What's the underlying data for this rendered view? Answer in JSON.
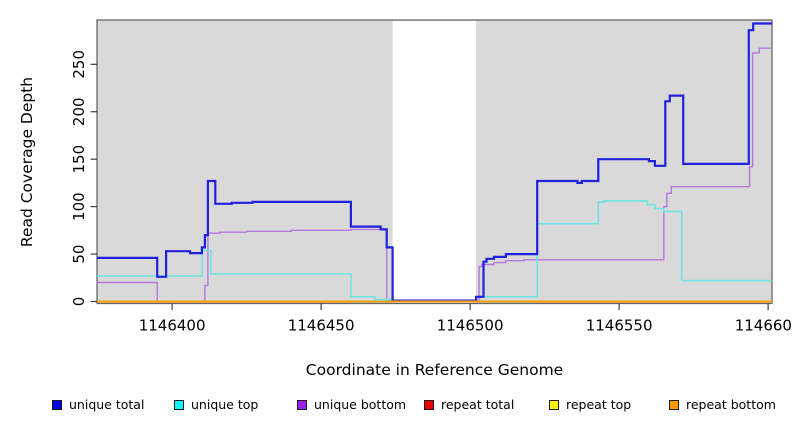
{
  "figure": {
    "xlabel": "Coordinate in Reference Genome",
    "ylabel": "Read Coverage Depth"
  },
  "chart_data": {
    "type": "line",
    "subtype": "step-after",
    "title": "",
    "xlabel": "Coordinate in Reference Genome",
    "ylabel": "Read Coverage Depth",
    "xlim": [
      1146374.8,
      1146601.3
    ],
    "ylim": [
      -2.1,
      296.7
    ],
    "x_ticks": [
      1146400,
      1146450,
      1146500,
      1146550,
      1146600
    ],
    "y_ticks": [
      0,
      50,
      100,
      150,
      200,
      250
    ],
    "grid": false,
    "legend_position": "bottom",
    "plot_background": "#d9d9d9",
    "outer_background": "#ffffff",
    "masked_region": {
      "from": 1146474,
      "to": 1146502,
      "color": "#ffffff"
    },
    "draw_order": [
      3,
      4,
      2,
      1,
      0,
      5
    ],
    "series": [
      {
        "name": "unique total",
        "color": "#2121dd",
        "legend_color": "#0000f0",
        "width": 2.2,
        "steps": [
          [
            1146374.8,
            46
          ],
          [
            1146395,
            26
          ],
          [
            1146398,
            53
          ],
          [
            1146406,
            51
          ],
          [
            1146410,
            57
          ],
          [
            1146411,
            70
          ],
          [
            1146412,
            127
          ],
          [
            1146414.5,
            103
          ],
          [
            1146420,
            104
          ],
          [
            1146427,
            105
          ],
          [
            1146460,
            79
          ],
          [
            1146470,
            76
          ],
          [
            1146472,
            57
          ],
          [
            1146474,
            1
          ],
          [
            1146502,
            5
          ],
          [
            1146504.5,
            42
          ],
          [
            1146505.5,
            45
          ],
          [
            1146508,
            47
          ],
          [
            1146512,
            50
          ],
          [
            1146522.5,
            127
          ],
          [
            1146536,
            125
          ],
          [
            1146537.5,
            127
          ],
          [
            1146543,
            150
          ],
          [
            1146560,
            148
          ],
          [
            1146562,
            143
          ],
          [
            1146565.5,
            211
          ],
          [
            1146567,
            217
          ],
          [
            1146571.5,
            145
          ],
          [
            1146593.5,
            286
          ],
          [
            1146595,
            293
          ]
        ]
      },
      {
        "name": "unique top",
        "color": "#70e4e4",
        "legend_color": "#00ffff",
        "width": 1.6,
        "steps": [
          [
            1146374.8,
            27
          ],
          [
            1146410,
            54
          ],
          [
            1146413,
            29
          ],
          [
            1146460,
            5
          ],
          [
            1146468,
            2
          ],
          [
            1146474,
            0
          ],
          [
            1146502,
            5
          ],
          [
            1146522.5,
            82
          ],
          [
            1146543,
            105
          ],
          [
            1146545,
            106
          ],
          [
            1146559.5,
            102
          ],
          [
            1146562,
            98
          ],
          [
            1146565,
            95
          ],
          [
            1146571,
            22
          ]
        ]
      },
      {
        "name": "unique bottom",
        "color": "#b678de",
        "legend_color": "#a020f0",
        "width": 1.4,
        "steps": [
          [
            1146374.8,
            20
          ],
          [
            1146395,
            0
          ],
          [
            1146411,
            17
          ],
          [
            1146412,
            72
          ],
          [
            1146416,
            73
          ],
          [
            1146425,
            74
          ],
          [
            1146440,
            75
          ],
          [
            1146460,
            76
          ],
          [
            1146472,
            0.7
          ],
          [
            1146503,
            37
          ],
          [
            1146504,
            39
          ],
          [
            1146508,
            41
          ],
          [
            1146512,
            43
          ],
          [
            1146518,
            44
          ],
          [
            1146565,
            100
          ],
          [
            1146566,
            114
          ],
          [
            1146567.5,
            121
          ],
          [
            1146593.8,
            142
          ],
          [
            1146594.8,
            262
          ],
          [
            1146597,
            267
          ]
        ]
      },
      {
        "name": "repeat total",
        "color": "#dd0000",
        "legend_color": "#ee0000",
        "width": 1.4,
        "steps": [
          [
            1146374.8,
            0
          ]
        ]
      },
      {
        "name": "repeat top",
        "color": "#f5e800",
        "legend_color": "#fff500",
        "width": 1.4,
        "steps": [
          [
            1146374.8,
            0
          ]
        ]
      },
      {
        "name": "repeat bottom",
        "color": "#ff9e00",
        "legend_color": "#ff9900",
        "width": 2,
        "steps": [
          [
            1146374.8,
            0
          ]
        ]
      }
    ]
  }
}
